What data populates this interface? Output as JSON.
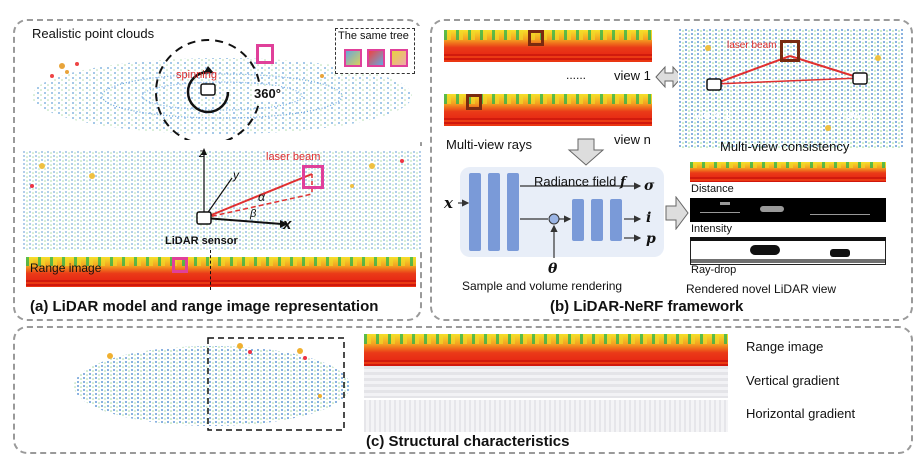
{
  "panel_a": {
    "title": "Realistic point clouds",
    "spinning": "spinning",
    "angle": "360°",
    "same_tree": "The same tree",
    "laser_beam": "laser beam",
    "axis_z": "z",
    "axis_y": "y",
    "axis_x": "x",
    "alpha": "α",
    "beta": "β",
    "sensor": "LiDAR sensor",
    "range_image": "Range image",
    "caption": "(a) LiDAR model and range image representation"
  },
  "panel_b": {
    "view1": "view 1",
    "dots": "......",
    "viewn": "view n",
    "multi_view_rays": "Multi-view rays",
    "laser_beam": "laser beam",
    "consistency_view1": "view 1",
    "consistency_viewn": "view n",
    "multi_view_consistency": "Multi-view consistency",
    "radiance_field": "Radiance field",
    "f_symbol": "f",
    "x_symbol": "x",
    "sigma": "σ",
    "i_symbol": "i",
    "p_symbol": "p",
    "theta": "θ",
    "sample_volume": "Sample and volume rendering",
    "distance": "Distance",
    "intensity": "Intensity",
    "ray_drop": "Ray-drop",
    "rendered_view": "Rendered novel LiDAR view",
    "caption": "(b) LiDAR-NeRF  framework"
  },
  "panel_c": {
    "range_image": "Range image",
    "vertical_gradient": "Vertical gradient",
    "horizontal_gradient": "Horizontal gradient",
    "caption": "(c) Structural characteristics"
  }
}
